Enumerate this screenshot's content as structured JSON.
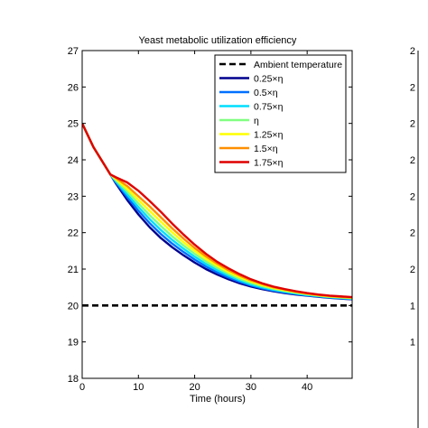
{
  "chart_data": {
    "type": "line",
    "title": "Yeast metabolic utilization efficiency",
    "xlabel": "Time (hours)",
    "ylabel": "",
    "xlim": [
      0,
      48
    ],
    "ylim": [
      18,
      27
    ],
    "xticks": [
      0,
      10,
      20,
      30,
      40
    ],
    "yticks": [
      18,
      19,
      20,
      21,
      22,
      23,
      24,
      25,
      26,
      27
    ],
    "grid": false,
    "legend_position": "top-right",
    "series": [
      {
        "name": "Ambient temperature",
        "color": "#000000",
        "dash": "dashed",
        "x": [
          0,
          48
        ],
        "y": [
          20,
          20
        ]
      },
      {
        "name": "0.25×η",
        "color": "#00008f",
        "x": [
          0,
          2,
          4,
          5,
          6,
          8,
          10,
          12,
          14,
          16,
          18,
          20,
          22,
          24,
          26,
          28,
          30,
          32,
          34,
          36,
          38,
          40,
          42,
          44,
          46,
          48
        ],
        "y": [
          25.0,
          24.35,
          23.85,
          23.6,
          23.35,
          22.9,
          22.5,
          22.15,
          21.85,
          21.6,
          21.38,
          21.18,
          21.0,
          20.85,
          20.72,
          20.61,
          20.52,
          20.45,
          20.39,
          20.34,
          20.3,
          20.27,
          20.24,
          20.21,
          20.19,
          20.17
        ]
      },
      {
        "name": "0.5×η",
        "color": "#0070ff",
        "x": [
          0,
          2,
          4,
          5,
          6,
          8,
          10,
          12,
          14,
          16,
          18,
          20,
          22,
          24,
          26,
          28,
          30,
          32,
          34,
          36,
          38,
          40,
          42,
          44,
          46,
          48
        ],
        "y": [
          25.0,
          24.35,
          23.85,
          23.6,
          23.38,
          22.98,
          22.6,
          22.26,
          21.96,
          21.7,
          21.47,
          21.26,
          21.07,
          20.91,
          20.77,
          20.65,
          20.55,
          20.47,
          20.41,
          20.36,
          20.32,
          20.28,
          20.25,
          20.22,
          20.2,
          20.18
        ]
      },
      {
        "name": "0.75×η",
        "color": "#00dfff",
        "x": [
          0,
          2,
          4,
          5,
          6,
          8,
          10,
          12,
          14,
          16,
          18,
          20,
          22,
          24,
          26,
          28,
          30,
          32,
          34,
          36,
          38,
          40,
          42,
          44,
          46,
          48
        ],
        "y": [
          25.0,
          24.35,
          23.85,
          23.6,
          23.41,
          23.05,
          22.7,
          22.37,
          22.07,
          21.8,
          21.56,
          21.34,
          21.14,
          20.97,
          20.82,
          20.69,
          20.58,
          20.5,
          20.43,
          20.38,
          20.33,
          20.29,
          20.26,
          20.23,
          20.21,
          20.19
        ]
      },
      {
        "name": "η",
        "color": "#80ff80",
        "x": [
          0,
          2,
          4,
          5,
          6,
          8,
          10,
          12,
          14,
          16,
          18,
          20,
          22,
          24,
          26,
          28,
          30,
          32,
          34,
          36,
          38,
          40,
          42,
          44,
          46,
          48
        ],
        "y": [
          25.0,
          24.35,
          23.85,
          23.6,
          23.44,
          23.13,
          22.8,
          22.48,
          22.18,
          21.9,
          21.65,
          21.42,
          21.21,
          21.03,
          20.87,
          20.73,
          20.62,
          20.53,
          20.46,
          20.4,
          20.35,
          20.31,
          20.27,
          20.24,
          20.22,
          20.2
        ]
      },
      {
        "name": "1.25×η",
        "color": "#ffff00",
        "x": [
          0,
          2,
          4,
          5,
          6,
          8,
          10,
          12,
          14,
          16,
          18,
          20,
          22,
          24,
          26,
          28,
          30,
          32,
          34,
          36,
          38,
          40,
          42,
          44,
          46,
          48
        ],
        "y": [
          25.0,
          24.35,
          23.85,
          23.6,
          23.47,
          23.2,
          22.9,
          22.6,
          22.3,
          22.01,
          21.74,
          21.5,
          21.28,
          21.09,
          20.92,
          20.78,
          20.66,
          20.56,
          20.48,
          20.42,
          20.37,
          20.32,
          20.28,
          20.25,
          20.23,
          20.21
        ]
      },
      {
        "name": "1.5×η",
        "color": "#ff8f00",
        "x": [
          0,
          2,
          4,
          5,
          6,
          8,
          10,
          12,
          14,
          16,
          18,
          20,
          22,
          24,
          26,
          28,
          30,
          32,
          34,
          36,
          38,
          40,
          42,
          44,
          46,
          48
        ],
        "y": [
          25.0,
          24.35,
          23.85,
          23.6,
          23.5,
          23.28,
          23.0,
          22.72,
          22.42,
          22.12,
          21.84,
          21.58,
          21.35,
          21.15,
          20.97,
          20.82,
          20.69,
          20.59,
          20.5,
          20.44,
          20.38,
          20.33,
          20.29,
          20.26,
          20.24,
          20.22
        ]
      },
      {
        "name": "1.75×η",
        "color": "#df0000",
        "x": [
          0,
          2,
          4,
          5,
          6,
          8,
          10,
          12,
          14,
          16,
          18,
          20,
          22,
          24,
          26,
          28,
          30,
          32,
          34,
          36,
          38,
          40,
          42,
          44,
          46,
          48
        ],
        "y": [
          25.0,
          24.35,
          23.85,
          23.6,
          23.52,
          23.38,
          23.15,
          22.87,
          22.57,
          22.25,
          21.95,
          21.67,
          21.42,
          21.2,
          21.02,
          20.86,
          20.72,
          20.61,
          20.52,
          20.45,
          20.39,
          20.34,
          20.3,
          20.27,
          20.25,
          20.23
        ]
      }
    ],
    "right_panel_partial_tick_labels": [
      "2",
      "2",
      "2",
      "2",
      "2",
      "2",
      "2",
      "1",
      "1"
    ]
  }
}
